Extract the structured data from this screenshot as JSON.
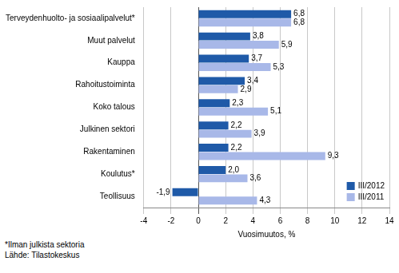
{
  "chart_data": {
    "type": "bar",
    "orientation": "horizontal",
    "categories": [
      "Terveydenhuolto- ja sosiaalipalvelut*",
      "Muut palvelut",
      "Kauppa",
      "Rahoitustoiminta",
      "Koko talous",
      "Julkinen sektori",
      "Rakentaminen",
      "Koulutus*",
      "Teollisuus"
    ],
    "series": [
      {
        "name": "III/2012",
        "color": "#1f5aa8",
        "values": [
          6.8,
          3.8,
          3.7,
          3.4,
          2.3,
          2.2,
          2.2,
          2.0,
          -1.9
        ],
        "value_labels": [
          "6,8",
          "3,8",
          "3,7",
          "3,4",
          "2,3",
          "2,2",
          "2,2",
          "2,0",
          "-1,9"
        ]
      },
      {
        "name": "III/2011",
        "color": "#a8b8e8",
        "values": [
          6.8,
          5.9,
          5.3,
          2.9,
          5.1,
          3.9,
          9.3,
          3.6,
          4.3
        ],
        "value_labels": [
          "6,8",
          "5,9",
          "5,3",
          "2,9",
          "5,1",
          "3,9",
          "9,3",
          "3,6",
          "4,3"
        ]
      }
    ],
    "x_label": "Vuosimuutos, %",
    "xlim": [
      -4,
      14
    ],
    "xticks": [
      -4,
      -2,
      0,
      2,
      4,
      6,
      8,
      10,
      12,
      14
    ],
    "grid": true,
    "legend": "lower right",
    "data_labels": true,
    "annotations": [
      "*Ilman julkista sektoria",
      "Lähde: Tilastokeskus"
    ]
  }
}
